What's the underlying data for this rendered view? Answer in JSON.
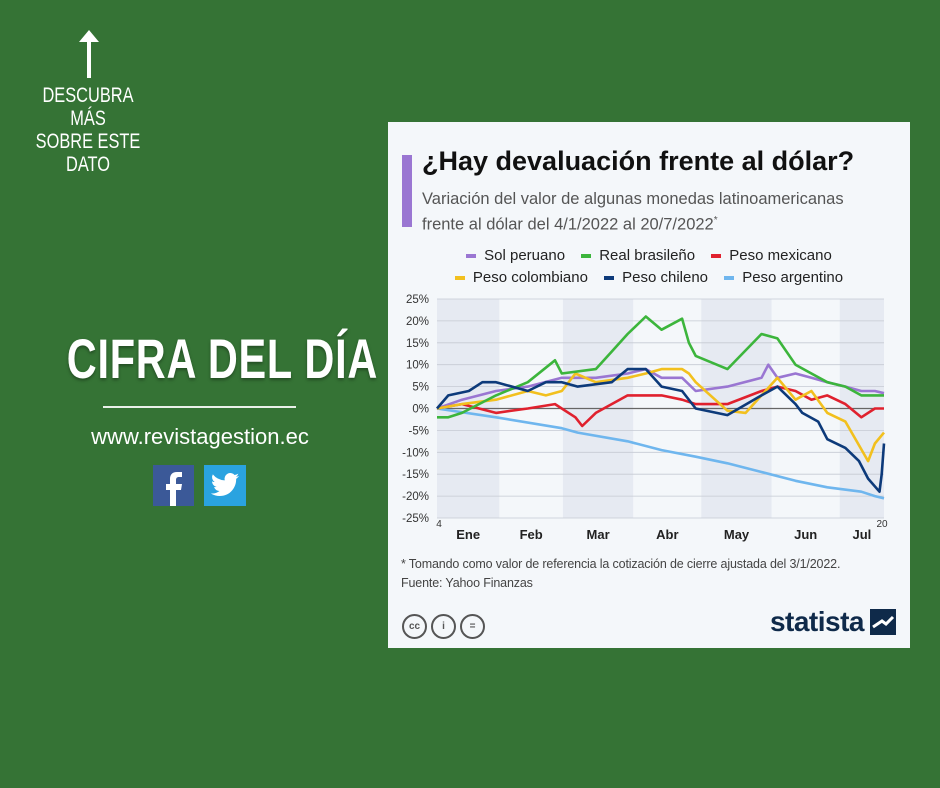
{
  "left_panel": {
    "cta_lines": [
      "DESCUBRA MÁS",
      "SOBRE ESTE",
      "DATO"
    ],
    "headline": "CIFRA DEL DÍA",
    "website": "www.revistagestion.ec",
    "social": [
      "facebook-icon",
      "twitter-icon"
    ]
  },
  "card": {
    "title": "¿Hay devaluación frente al dólar?",
    "subtitle_line1": "Variación del valor de algunas monedas latinoamericanas",
    "subtitle_line2": "frente al dólar del 4/1/2022 al 20/7/2022",
    "subtitle_mark": "*",
    "footnote": "* Tomando como valor de referencia la cotización de cierre ajustada del 3/1/2022.",
    "source": "Fuente: Yahoo Finanzas",
    "license_icons": [
      "cc",
      "i",
      "="
    ],
    "logo": "statista",
    "accent": "#9a76d2"
  },
  "chart_data": {
    "type": "line",
    "title": "¿Hay devaluación frente al dólar?",
    "xlabel": "",
    "ylabel": "",
    "xlim": [
      4,
      201
    ],
    "ylim": [
      -25,
      25
    ],
    "yticks": [
      25,
      20,
      15,
      10,
      5,
      0,
      -5,
      -10,
      -15,
      -20,
      -25
    ],
    "ytick_labels": [
      "25%",
      "20%",
      "15%",
      "10%",
      "5%",
      "0%",
      "-5%",
      "-10%",
      "-15%",
      "-20%",
      "-25%"
    ],
    "months": [
      {
        "label": "Ene",
        "start": 4,
        "end": 31
      },
      {
        "label": "Feb",
        "start": 32,
        "end": 59
      },
      {
        "label": "Mar",
        "start": 60,
        "end": 90
      },
      {
        "label": "Abr",
        "start": 91,
        "end": 120
      },
      {
        "label": "May",
        "start": 121,
        "end": 151
      },
      {
        "label": "Jun",
        "start": 152,
        "end": 181
      },
      {
        "label": "Jul",
        "start": 182,
        "end": 201
      }
    ],
    "start_label": "4",
    "end_label": "20",
    "grid": true,
    "legend_position": "top",
    "series": [
      {
        "name": "Sol peruano",
        "color": "#9a76d2",
        "x": [
          4,
          15,
          30,
          44,
          59,
          74,
          88,
          96,
          103,
          112,
          118,
          132,
          147,
          150,
          154,
          162,
          169,
          176,
          184,
          191,
          197,
          201
        ],
        "y": [
          0,
          2,
          4,
          5,
          7,
          7,
          8,
          9,
          7,
          7,
          4,
          5,
          7,
          10,
          7,
          8,
          7,
          6,
          5,
          4,
          4,
          3.5
        ]
      },
      {
        "name": "Real brasileño",
        "color": "#3cb53c",
        "x": [
          4,
          9,
          15,
          30,
          44,
          56,
          59,
          74,
          81,
          88,
          96,
          103,
          112,
          115,
          118,
          132,
          147,
          154,
          162,
          169,
          176,
          184,
          191,
          197,
          201
        ],
        "y": [
          -2,
          -2,
          -1,
          3,
          6,
          11,
          8,
          9,
          13,
          17,
          21,
          18,
          20.5,
          15,
          12,
          9,
          17,
          16,
          10,
          8,
          6,
          5,
          3,
          3,
          3
        ]
      },
      {
        "name": "Peso mexicano",
        "color": "#e0212e",
        "x": [
          4,
          15,
          30,
          44,
          56,
          65,
          68,
          74,
          88,
          96,
          103,
          112,
          118,
          132,
          147,
          154,
          162,
          169,
          176,
          184,
          191,
          197,
          201
        ],
        "y": [
          0,
          1,
          -1,
          0,
          1,
          -2,
          -4,
          -1,
          3,
          3,
          3,
          2,
          1,
          1,
          4,
          5,
          4,
          2,
          3,
          1,
          -2,
          0,
          0
        ]
      },
      {
        "name": "Peso colombiano",
        "color": "#f2c01e",
        "x": [
          4,
          15,
          30,
          44,
          52,
          59,
          65,
          74,
          88,
          96,
          103,
          112,
          115,
          118,
          132,
          140,
          147,
          154,
          162,
          169,
          176,
          184,
          194,
          197,
          201
        ],
        "y": [
          0,
          1,
          2,
          4,
          3,
          4,
          8,
          6,
          7,
          8,
          9,
          9,
          8,
          6,
          -0.5,
          -1,
          3,
          7,
          2,
          4,
          -1,
          -3,
          -12,
          -8,
          -5.5
        ]
      },
      {
        "name": "Peso chileno",
        "color": "#0d3a7a",
        "x": [
          4,
          9,
          18,
          24,
          30,
          44,
          52,
          59,
          66,
          81,
          88,
          96,
          103,
          112,
          118,
          132,
          147,
          154,
          162,
          165,
          172,
          176,
          184,
          190,
          194,
          199,
          200,
          201
        ],
        "y": [
          0,
          3,
          4,
          6,
          6,
          4,
          6,
          6,
          5,
          6,
          9,
          9,
          5,
          4,
          0,
          -1.5,
          3,
          5,
          1,
          -1,
          -3,
          -7,
          -9,
          -12,
          -16,
          -19,
          -15,
          -8
        ]
      },
      {
        "name": "Peso argentino",
        "color": "#6fb6ee",
        "x": [
          4,
          30,
          59,
          66,
          88,
          103,
          118,
          132,
          147,
          162,
          176,
          191,
          197,
          201
        ],
        "y": [
          0,
          -2,
          -4.5,
          -5.5,
          -7.5,
          -9.5,
          -11,
          -12.5,
          -14.5,
          -16.5,
          -18,
          -19,
          -20,
          -20.5
        ]
      }
    ]
  }
}
